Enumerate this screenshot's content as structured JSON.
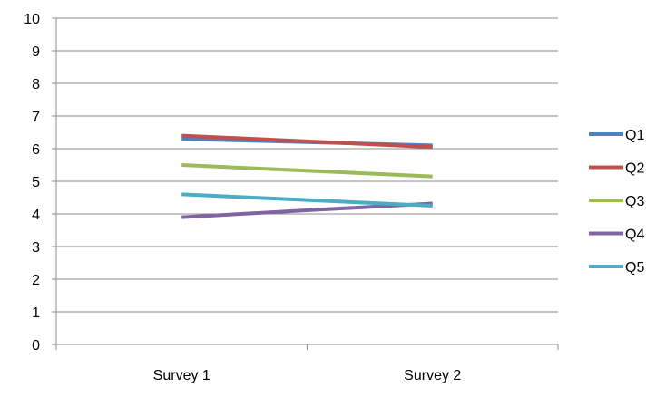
{
  "chart_data": {
    "type": "line",
    "title": "",
    "xlabel": "",
    "ylabel": "",
    "categories": [
      "Survey 1",
      "Survey 2"
    ],
    "ylim": [
      0,
      10
    ],
    "yticks": [
      "0",
      "1",
      "2",
      "3",
      "4",
      "5",
      "6",
      "7",
      "8",
      "9",
      "10"
    ],
    "grid": true,
    "legend_position": "right",
    "series": [
      {
        "name": "Q1",
        "color": "#4F81BD",
        "values": [
          6.3,
          6.1
        ]
      },
      {
        "name": "Q2",
        "color": "#C0504D",
        "values": [
          6.4,
          6.05
        ]
      },
      {
        "name": "Q3",
        "color": "#9BBB59",
        "values": [
          5.5,
          5.15
        ]
      },
      {
        "name": "Q4",
        "color": "#8064A2",
        "values": [
          3.9,
          4.32
        ]
      },
      {
        "name": "Q5",
        "color": "#4BACC6",
        "values": [
          4.6,
          4.25
        ]
      }
    ]
  }
}
